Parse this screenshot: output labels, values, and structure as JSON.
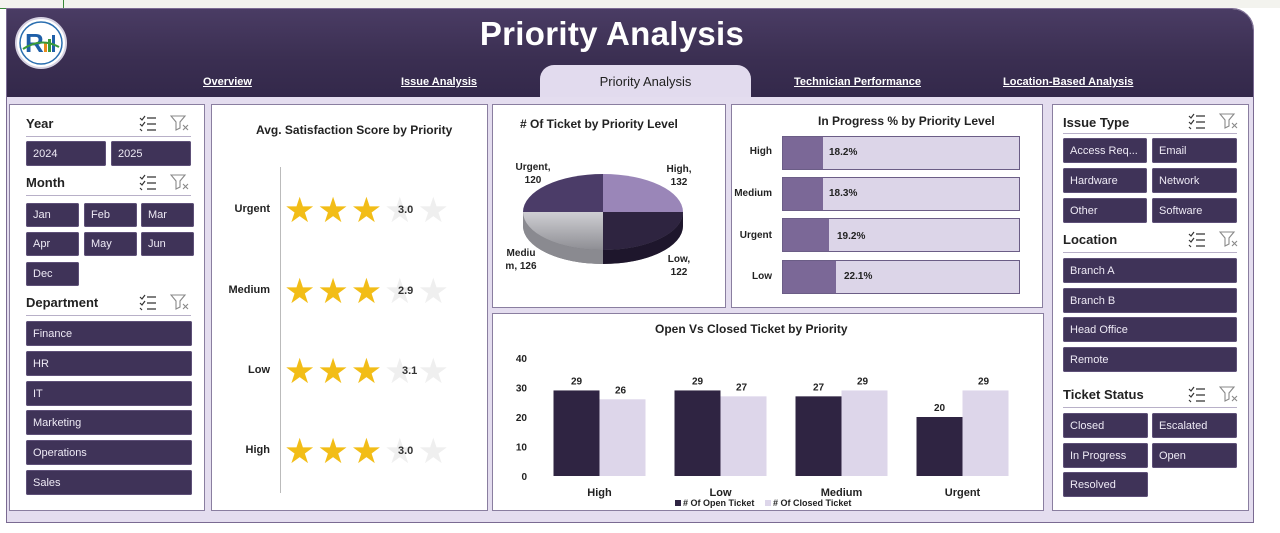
{
  "header": {
    "title": "Priority Analysis",
    "tabs": [
      {
        "label": "Overview"
      },
      {
        "label": "Issue Analysis"
      },
      {
        "label": "Priority Analysis",
        "active": true
      },
      {
        "label": "Technician Performance"
      },
      {
        "label": "Location-Based Analysis"
      }
    ]
  },
  "colors": {
    "brand_dark": "#3b2f52",
    "accent_light": "#e2dbee",
    "star": "#f2bd17",
    "open_bar": "#2f2442",
    "closed_bar": "#ddd6ea"
  },
  "left_slicers": {
    "year": {
      "label": "Year",
      "items": [
        "2024",
        "2025"
      ]
    },
    "month": {
      "label": "Month",
      "items": [
        "Jan",
        "Feb",
        "Mar",
        "Apr",
        "May",
        "Jun",
        "Dec"
      ]
    },
    "department": {
      "label": "Department",
      "items": [
        "Finance",
        "HR",
        "IT",
        "Marketing",
        "Operations",
        "Sales"
      ]
    }
  },
  "right_slicers": {
    "issue_type": {
      "label": "Issue Type",
      "items": [
        "Access Req...",
        "Email",
        "Hardware",
        "Network",
        "Other",
        "Software"
      ]
    },
    "location": {
      "label": "Location",
      "items": [
        "Branch A",
        "Branch B",
        "Head Office",
        "Remote"
      ]
    },
    "ticket_status": {
      "label": "Ticket Status",
      "items": [
        "Closed",
        "Escalated",
        "In Progress",
        "Open",
        "Resolved"
      ]
    }
  },
  "icons": {
    "multi_select": "multi-select-icon",
    "clear_filter": "clear-filter-icon",
    "star": "star-icon"
  },
  "chart_data": [
    {
      "type": "bar",
      "title": "Avg. Satisfaction Score by  Priority",
      "categories": [
        "Urgent",
        "Medium",
        "Low",
        "High"
      ],
      "values": [
        3.0,
        2.9,
        3.1,
        3.0
      ],
      "value_labels": [
        "3.0",
        "2.9",
        "3.1",
        "3.0"
      ],
      "max_stars": 5
    },
    {
      "type": "pie",
      "title": "# Of Ticket by Priority Level",
      "categories": [
        "High",
        "Low",
        "Medium",
        "Urgent"
      ],
      "values": [
        132,
        122,
        126,
        120
      ],
      "labels": [
        "High,\n132",
        "Low,\n122",
        "Mediu\nm, 126",
        "Urgent,\n120"
      ]
    },
    {
      "type": "bar",
      "title": "In Progress % by Priority Level",
      "categories": [
        "High",
        "Medium",
        "Urgent",
        "Low"
      ],
      "values": [
        18.2,
        18.3,
        19.2,
        22.1
      ],
      "value_labels": [
        "18.2%",
        "18.3%",
        "19.2%",
        "22.1%"
      ],
      "xlim": [
        0,
        100
      ]
    },
    {
      "type": "bar",
      "title": "Open Vs Closed Ticket by  Priority",
      "categories": [
        "High",
        "Low",
        "Medium",
        "Urgent"
      ],
      "series": [
        {
          "name": "# Of Open Ticket",
          "values": [
            29,
            29,
            27,
            20
          ]
        },
        {
          "name": "# Of Closed Ticket",
          "values": [
            26,
            27,
            29,
            29
          ]
        }
      ],
      "ylim": [
        0,
        40
      ],
      "yticks": [
        "0",
        "10",
        "20",
        "30",
        "40"
      ],
      "legend": "bottom"
    }
  ]
}
